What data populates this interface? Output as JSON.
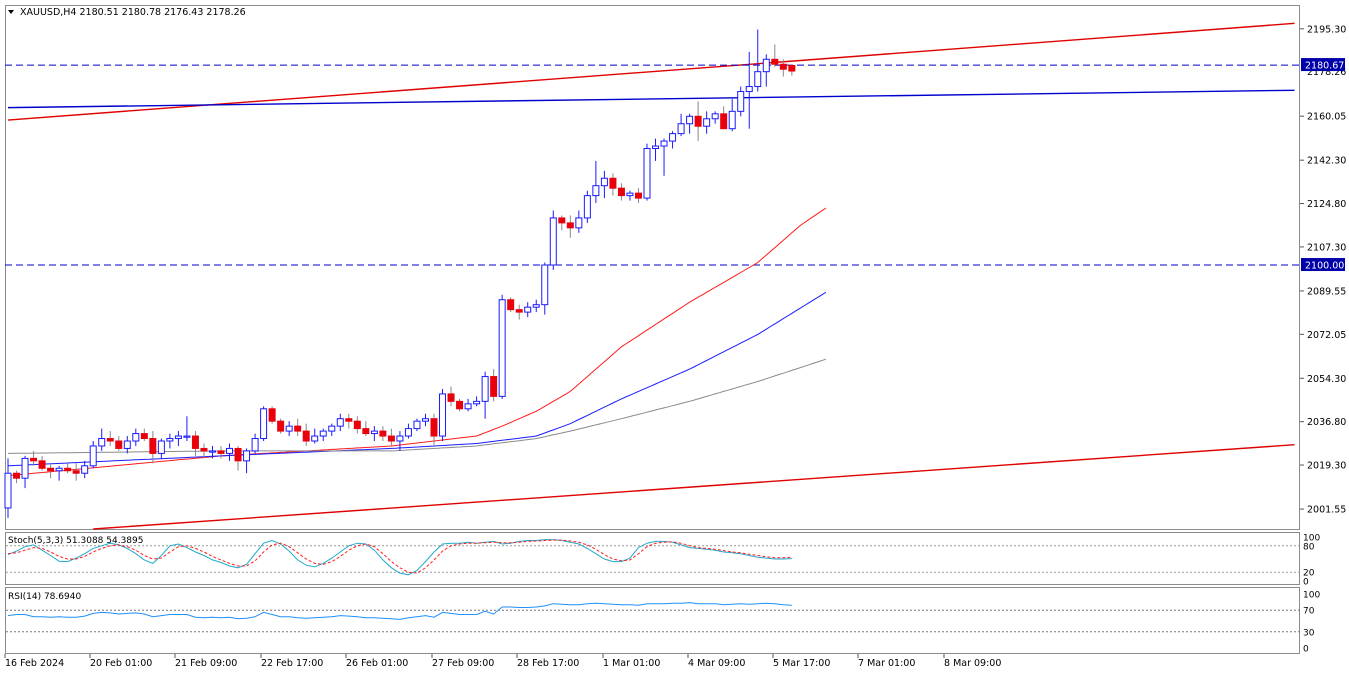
{
  "header": {
    "symbol_line": "XAUUSD,H4  2180.51 2180.78 2176.43 2178.26",
    "dropdown_icon": "triangle-down-icon"
  },
  "colors": {
    "background": "#ffffff",
    "bull_candle": "#1a1aff",
    "bear_candle": "#e8000b",
    "ma_fast": "#ff1a1a",
    "ma_mid": "#1a1aff",
    "ma_slow": "#8a8a8a",
    "channel": "#e00000",
    "trend_blue": "#0000cc",
    "dashed_level": "#0000cc",
    "stoch_main": "#22aacc",
    "stoch_signal": "#ff2020",
    "rsi": "#1e90ff"
  },
  "chart_data": {
    "type": "candlestick",
    "symbol": "XAUUSD",
    "timeframe": "H4",
    "ohlc_readout": {
      "open": 2180.51,
      "high": 2180.78,
      "low": 2176.43,
      "close": 2178.26
    },
    "y_ticks": [
      2195.3,
      2160.05,
      2142.3,
      2124.8,
      2107.3,
      2089.55,
      2072.05,
      2054.3,
      2036.8,
      2019.3,
      2001.55
    ],
    "y_tick_labels": [
      "2195.30",
      "2160.05",
      "2142.30",
      "2124.80",
      "2107.30",
      "2089.55",
      "2072.05",
      "2054.30",
      "2036.80",
      "2019.30",
      "2001.55"
    ],
    "ylim": [
      1993.5,
      2204.5
    ],
    "x_labels": [
      "16 Feb 2024",
      "20 Feb 01:00",
      "21 Feb 09:00",
      "22 Feb 17:00",
      "26 Feb 01:00",
      "27 Feb 09:00",
      "28 Feb 17:00",
      "1 Mar 01:00",
      "4 Mar 09:00",
      "5 Mar 17:00",
      "7 Mar 01:00",
      "8 Mar 09:00"
    ],
    "price_levels": [
      {
        "label": "2180.67",
        "value": 2180.67,
        "style": "dashed"
      },
      {
        "label": "2100.00",
        "value": 2100.0,
        "style": "dashed"
      }
    ],
    "hidden_label": "2178.26",
    "trendlines": [
      {
        "name": "channel-upper",
        "from": [
          0,
          2158.5
        ],
        "to": [
          151,
          2197.5
        ]
      },
      {
        "name": "channel-lower",
        "from": [
          10,
          1993.5
        ],
        "to": [
          151,
          2027.5
        ]
      },
      {
        "name": "support-line",
        "from": [
          0,
          2163.5
        ],
        "to": [
          151,
          2170.5
        ]
      }
    ],
    "candles": [
      [
        2002.0,
        2022.0,
        1998.0,
        2016.0
      ],
      [
        2016.0,
        2017.0,
        2012.0,
        2014.0
      ],
      [
        2014.0,
        2023.0,
        2010.0,
        2022.0
      ],
      [
        2022.0,
        2025.0,
        2019.0,
        2021.0
      ],
      [
        2021.0,
        2023.0,
        2017.0,
        2018.0
      ],
      [
        2018.0,
        2020.0,
        2014.0,
        2017.0
      ],
      [
        2017.0,
        2019.0,
        2013.0,
        2018.0
      ],
      [
        2018.0,
        2020.0,
        2016.0,
        2017.0
      ],
      [
        2017.0,
        2020.0,
        2013.0,
        2016.0
      ],
      [
        2016.0,
        2021.0,
        2014.0,
        2019.0
      ],
      [
        2019.0,
        2029.0,
        2018.0,
        2027.0
      ],
      [
        2027.0,
        2034.0,
        2025.0,
        2030.0
      ],
      [
        2030.0,
        2033.0,
        2027.0,
        2029.0
      ],
      [
        2029.0,
        2031.0,
        2025.0,
        2026.0
      ],
      [
        2026.0,
        2031.0,
        2024.0,
        2029.0
      ],
      [
        2029.0,
        2034.0,
        2027.0,
        2032.0
      ],
      [
        2032.0,
        2034.0,
        2029.0,
        2030.0
      ],
      [
        2030.0,
        2033.0,
        2020.0,
        2024.0
      ],
      [
        2024.0,
        2030.0,
        2022.0,
        2029.0
      ],
      [
        2029.0,
        2032.0,
        2026.0,
        2030.0
      ],
      [
        2030.0,
        2033.0,
        2027.0,
        2031.0
      ],
      [
        2031.0,
        2039.0,
        2029.0,
        2031.0
      ],
      [
        2031.0,
        2033.0,
        2023.0,
        2026.0
      ],
      [
        2026.0,
        2028.0,
        2022.0,
        2025.0
      ],
      [
        2025.0,
        2027.0,
        2022.0,
        2025.0
      ],
      [
        2025.0,
        2027.0,
        2022.0,
        2024.0
      ],
      [
        2024.0,
        2028.0,
        2021.0,
        2026.0
      ],
      [
        2026.0,
        2027.0,
        2017.0,
        2021.0
      ],
      [
        2021.0,
        2026.0,
        2016.0,
        2025.0
      ],
      [
        2025.0,
        2032.0,
        2024.0,
        2030.0
      ],
      [
        2030.0,
        2043.0,
        2029.0,
        2042.0
      ],
      [
        2042.0,
        2043.0,
        2036.0,
        2037.0
      ],
      [
        2037.0,
        2038.0,
        2032.0,
        2033.0
      ],
      [
        2033.0,
        2037.0,
        2031.0,
        2035.0
      ],
      [
        2035.0,
        2038.0,
        2031.0,
        2033.0
      ],
      [
        2033.0,
        2036.0,
        2027.0,
        2029.0
      ],
      [
        2029.0,
        2034.0,
        2028.0,
        2031.0
      ],
      [
        2031.0,
        2034.0,
        2029.0,
        2033.0
      ],
      [
        2033.0,
        2036.0,
        2031.0,
        2035.0
      ],
      [
        2035.0,
        2040.0,
        2033.0,
        2038.0
      ],
      [
        2038.0,
        2040.0,
        2034.0,
        2037.0
      ],
      [
        2037.0,
        2039.0,
        2032.0,
        2034.0
      ],
      [
        2034.0,
        2037.0,
        2031.0,
        2032.0
      ],
      [
        2032.0,
        2035.0,
        2029.0,
        2033.0
      ],
      [
        2033.0,
        2035.0,
        2029.0,
        2031.0
      ],
      [
        2031.0,
        2034.0,
        2027.0,
        2029.0
      ],
      [
        2029.0,
        2033.0,
        2025.0,
        2031.0
      ],
      [
        2031.0,
        2036.0,
        2030.0,
        2034.0
      ],
      [
        2034.0,
        2038.0,
        2033.0,
        2037.0
      ],
      [
        2037.0,
        2040.0,
        2035.0,
        2038.0
      ],
      [
        2038.0,
        2040.0,
        2027.0,
        2031.0
      ],
      [
        2031.0,
        2050.0,
        2029.0,
        2048.0
      ],
      [
        2048.0,
        2051.0,
        2043.0,
        2045.0
      ],
      [
        2045.0,
        2046.0,
        2041.0,
        2042.0
      ],
      [
        2042.0,
        2046.0,
        2041.0,
        2044.0
      ],
      [
        2044.0,
        2047.0,
        2043.0,
        2045.0
      ],
      [
        2045.0,
        2057.0,
        2038.0,
        2055.0
      ],
      [
        2055.0,
        2058.0,
        2045.0,
        2047.0
      ],
      [
        2047.0,
        2088.0,
        2046.0,
        2086.0
      ],
      [
        2086.0,
        2087.0,
        2081.0,
        2082.0
      ],
      [
        2082.0,
        2084.0,
        2078.0,
        2081.0
      ],
      [
        2081.0,
        2085.0,
        2079.0,
        2083.0
      ],
      [
        2083.0,
        2086.0,
        2081.0,
        2084.0
      ],
      [
        2084.0,
        2101.0,
        2080.0,
        2100.0
      ],
      [
        2100.0,
        2122.0,
        2098.0,
        2119.0
      ],
      [
        2119.0,
        2120.0,
        2114.0,
        2117.0
      ],
      [
        2117.0,
        2120.0,
        2111.0,
        2115.0
      ],
      [
        2115.0,
        2122.0,
        2113.0,
        2119.0
      ],
      [
        2119.0,
        2130.0,
        2117.0,
        2128.0
      ],
      [
        2128.0,
        2142.0,
        2125.0,
        2132.0
      ],
      [
        2132.0,
        2138.0,
        2127.0,
        2135.0
      ],
      [
        2135.0,
        2137.0,
        2128.0,
        2131.0
      ],
      [
        2131.0,
        2133.0,
        2126.0,
        2128.0
      ],
      [
        2128.0,
        2130.0,
        2126.0,
        2129.0
      ],
      [
        2129.0,
        2131.0,
        2125.0,
        2127.0
      ],
      [
        2127.0,
        2149.0,
        2126.0,
        2147.0
      ],
      [
        2147.0,
        2151.0,
        2142.0,
        2148.0
      ],
      [
        2148.0,
        2151.0,
        2136.0,
        2150.0
      ],
      [
        2150.0,
        2154.0,
        2147.0,
        2153.0
      ],
      [
        2153.0,
        2161.0,
        2152.0,
        2157.0
      ],
      [
        2157.0,
        2161.0,
        2153.0,
        2160.0
      ],
      [
        2160.0,
        2166.0,
        2150.0,
        2156.0
      ],
      [
        2156.0,
        2162.0,
        2153.0,
        2159.0
      ],
      [
        2159.0,
        2162.0,
        2157.0,
        2161.0
      ],
      [
        2161.0,
        2164.0,
        2155.0,
        2155.0
      ],
      [
        2155.0,
        2167.0,
        2154.0,
        2162.0
      ],
      [
        2162.0,
        2172.0,
        2160.0,
        2170.0
      ],
      [
        2170.0,
        2186.0,
        2155.0,
        2172.0
      ],
      [
        2172.0,
        2195.0,
        2170.0,
        2178.0
      ],
      [
        2178.0,
        2185.0,
        2172.0,
        2183.0
      ],
      [
        2183.0,
        2189.0,
        2180.0,
        2181.0
      ],
      [
        2181.0,
        2183.0,
        2176.0,
        2179.0
      ],
      [
        2180.51,
        2180.78,
        2176.43,
        2178.26
      ]
    ],
    "moving_averages": [
      {
        "name": "MA fast",
        "color": "#ff1a1a",
        "knots": [
          [
            0,
            2015.0
          ],
          [
            25,
            2023.0
          ],
          [
            45,
            2027.0
          ],
          [
            55,
            2031.0
          ],
          [
            58,
            2035.0
          ],
          [
            62,
            2041.0
          ],
          [
            66,
            2049.0
          ],
          [
            72,
            2067.0
          ],
          [
            80,
            2085.0
          ],
          [
            88,
            2101.0
          ],
          [
            93,
            2116.0
          ],
          [
            96,
            2123.0
          ]
        ]
      },
      {
        "name": "MA mid",
        "color": "#1a1aff",
        "knots": [
          [
            0,
            2019.0
          ],
          [
            25,
            2023.0
          ],
          [
            45,
            2026.0
          ],
          [
            55,
            2028.0
          ],
          [
            62,
            2031.0
          ],
          [
            66,
            2036.0
          ],
          [
            72,
            2046.0
          ],
          [
            80,
            2058.0
          ],
          [
            88,
            2072.0
          ],
          [
            96,
            2089.0
          ]
        ]
      },
      {
        "name": "MA slow",
        "color": "#8a8a8a",
        "knots": [
          [
            0,
            2024.0
          ],
          [
            25,
            2025.0
          ],
          [
            45,
            2025.0
          ],
          [
            55,
            2027.0
          ],
          [
            62,
            2030.0
          ],
          [
            66,
            2033.0
          ],
          [
            72,
            2038.0
          ],
          [
            80,
            2045.0
          ],
          [
            88,
            2053.0
          ],
          [
            96,
            2062.0
          ]
        ]
      }
    ]
  },
  "stochastic": {
    "title": "Stoch(5,3,3) 51.3088 54.3895",
    "ylim": [
      0,
      100
    ],
    "axis_labels": [
      "100",
      "80",
      "20",
      "0"
    ],
    "axis_values": [
      100,
      80,
      20,
      0
    ],
    "levels": [
      80,
      20
    ],
    "main": [
      60,
      68,
      78,
      82,
      70,
      58,
      45,
      44,
      52,
      62,
      74,
      80,
      86,
      82,
      74,
      62,
      48,
      40,
      58,
      80,
      84,
      76,
      66,
      58,
      48,
      42,
      34,
      30,
      38,
      62,
      86,
      92,
      84,
      68,
      48,
      36,
      32,
      40,
      52,
      66,
      80,
      86,
      84,
      70,
      48,
      30,
      18,
      14,
      24,
      44,
      66,
      84,
      86,
      86,
      88,
      86,
      88,
      90,
      84,
      86,
      90,
      92,
      92,
      94,
      94,
      92,
      88,
      84,
      74,
      62,
      50,
      44,
      44,
      52,
      76,
      86,
      90,
      90,
      88,
      82,
      76,
      74,
      72,
      70,
      66,
      64,
      62,
      58,
      54,
      52,
      50,
      50,
      51
    ],
    "signal": [
      62,
      64,
      70,
      76,
      74,
      66,
      56,
      50,
      50,
      56,
      66,
      74,
      80,
      82,
      78,
      70,
      58,
      50,
      52,
      66,
      78,
      80,
      74,
      66,
      56,
      48,
      40,
      34,
      34,
      46,
      66,
      82,
      86,
      78,
      64,
      50,
      40,
      38,
      44,
      56,
      70,
      80,
      84,
      78,
      62,
      44,
      30,
      20,
      18,
      30,
      48,
      68,
      80,
      84,
      86,
      86,
      87,
      88,
      87,
      87,
      88,
      90,
      91,
      92,
      93,
      93,
      91,
      88,
      82,
      72,
      60,
      50,
      46,
      48,
      62,
      78,
      86,
      88,
      89,
      86,
      80,
      76,
      74,
      72,
      69,
      66,
      64,
      61,
      58,
      55,
      53,
      53,
      54
    ]
  },
  "rsi": {
    "title": "RSI(14) 78.6940",
    "ylim": [
      0,
      100
    ],
    "axis_labels": [
      "100",
      "70",
      "30",
      "0"
    ],
    "axis_values": [
      100,
      70,
      30,
      0
    ],
    "levels": [
      70,
      30
    ],
    "values": [
      60,
      62,
      62,
      58,
      58,
      57,
      58,
      57,
      57,
      59,
      64,
      66,
      65,
      63,
      64,
      65,
      63,
      58,
      60,
      62,
      62,
      62,
      57,
      56,
      57,
      56,
      57,
      54,
      55,
      58,
      66,
      62,
      58,
      58,
      56,
      55,
      56,
      57,
      58,
      60,
      59,
      58,
      56,
      56,
      55,
      54,
      53,
      56,
      58,
      60,
      57,
      66,
      64,
      62,
      62,
      62,
      68,
      63,
      76,
      76,
      75,
      75,
      76,
      78,
      82,
      81,
      80,
      80,
      82,
      83,
      82,
      81,
      80,
      80,
      79,
      82,
      82,
      82,
      83,
      83,
      84,
      82,
      82,
      82,
      80,
      81,
      82,
      81,
      82,
      83,
      82,
      80,
      79
    ]
  },
  "price_axis": {
    "current_price_label": "2180.67",
    "level_label": "2100.00"
  }
}
